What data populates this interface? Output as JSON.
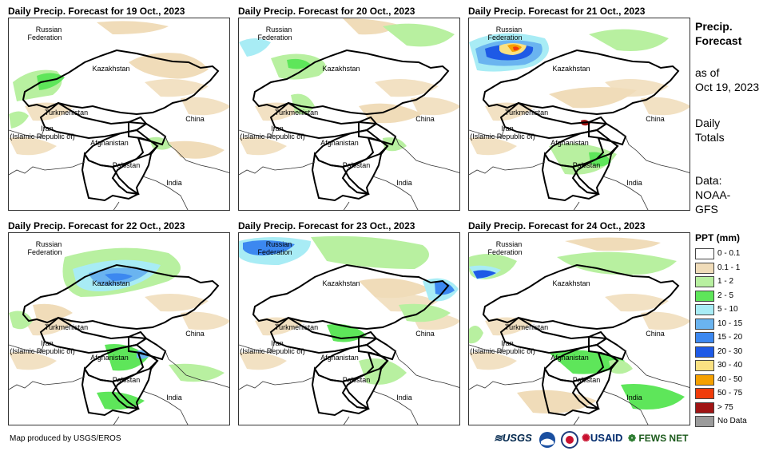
{
  "panels": [
    {
      "title": "Daily Precip. Forecast for 19 Oct., 2023"
    },
    {
      "title": "Daily Precip. Forecast for 20 Oct., 2023"
    },
    {
      "title": "Daily Precip. Forecast for 21 Oct., 2023"
    },
    {
      "title": "Daily Precip. Forecast for 22 Oct., 2023"
    },
    {
      "title": "Daily Precip. Forecast for 23 Oct., 2023"
    },
    {
      "title": "Daily Precip. Forecast for 24 Oct., 2023"
    }
  ],
  "countries": {
    "russia_1": "Russian",
    "russia_2": "Federation",
    "kazakhstan": "Kazakhstan",
    "turkmenistan": "Turkmenistan",
    "iran_1": "Iran",
    "iran_2": "(Islamic Republic of)",
    "afghanistan": "Afghanistan",
    "pakistan": "Pakistan",
    "china": "China",
    "india": "India"
  },
  "side": {
    "heading_1": "Precip.",
    "heading_2": "Forecast",
    "asof_1": "as of",
    "asof_2": "Oct 19, 2023",
    "totals_1": "Daily",
    "totals_2": "Totals",
    "data_1": "Data:",
    "data_2": "NOAA-",
    "data_3": "GFS"
  },
  "legend": {
    "title": "PPT (mm)",
    "items": [
      {
        "label": "0 - 0.1",
        "color": "#ffffff"
      },
      {
        "label": "0.1 - 1",
        "color": "#f0dcb9"
      },
      {
        "label": "1 - 2",
        "color": "#b8f0a0"
      },
      {
        "label": "2 - 5",
        "color": "#5ee65a"
      },
      {
        "label": "5 - 10",
        "color": "#a8ecf5"
      },
      {
        "label": "10 - 15",
        "color": "#6ab4f0"
      },
      {
        "label": "15 - 20",
        "color": "#3c88f0"
      },
      {
        "label": "20 - 30",
        "color": "#1e5ae6"
      },
      {
        "label": "30 - 40",
        "color": "#fae182"
      },
      {
        "label": "40 - 50",
        "color": "#f5a000"
      },
      {
        "label": "50 - 75",
        "color": "#f03c0a"
      },
      {
        "label": "> 75",
        "color": "#a01414"
      },
      {
        "label": "No Data",
        "color": "#9b9b9b"
      }
    ]
  },
  "credit": "Map produced by USGS/EROS",
  "logos": {
    "usgs": "USGS",
    "usaid": "USAID",
    "fewsnet": "FEWS NET"
  }
}
